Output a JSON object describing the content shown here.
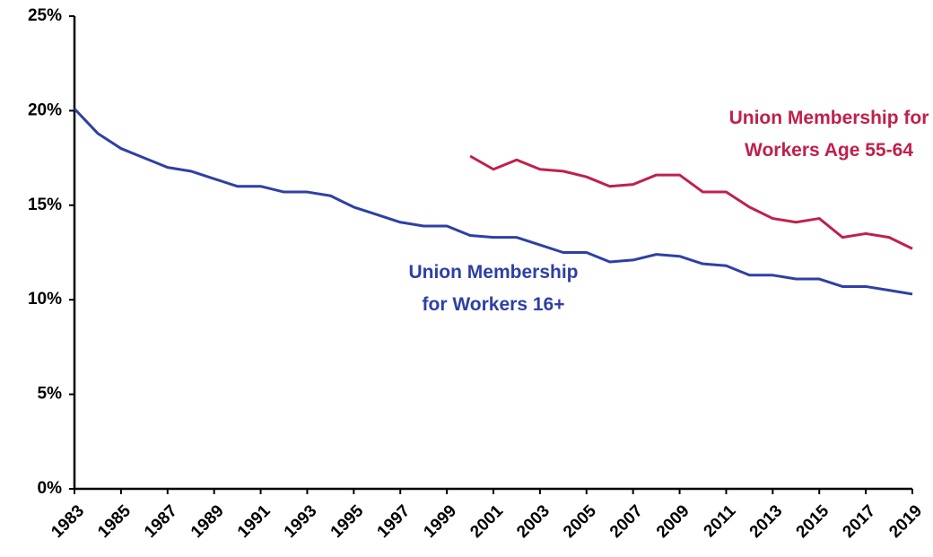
{
  "chart_data": {
    "type": "line",
    "x": [
      1983,
      1984,
      1985,
      1986,
      1987,
      1988,
      1989,
      1990,
      1991,
      1992,
      1993,
      1994,
      1995,
      1996,
      1997,
      1998,
      1999,
      2000,
      2001,
      2002,
      2003,
      2004,
      2005,
      2006,
      2007,
      2008,
      2009,
      2010,
      2011,
      2012,
      2013,
      2014,
      2015,
      2016,
      2017,
      2018,
      2019
    ],
    "series": [
      {
        "name": "Union Membership for Workers 16+",
        "color": "#2e3fa6",
        "values": [
          20.1,
          18.8,
          18.0,
          17.5,
          17.0,
          16.8,
          16.4,
          16.0,
          16.0,
          15.7,
          15.7,
          15.5,
          14.9,
          14.5,
          14.1,
          13.9,
          13.9,
          13.4,
          13.3,
          13.3,
          12.9,
          12.5,
          12.5,
          12.0,
          12.1,
          12.4,
          12.3,
          11.9,
          11.8,
          11.3,
          11.3,
          11.1,
          11.1,
          10.7,
          10.7,
          10.5,
          10.3
        ]
      },
      {
        "name": "Union Membership for Workers Age 55-64",
        "color": "#c0204a",
        "values": [
          null,
          null,
          null,
          null,
          null,
          null,
          null,
          null,
          null,
          null,
          null,
          null,
          null,
          null,
          null,
          null,
          null,
          17.6,
          16.9,
          17.4,
          16.9,
          16.8,
          16.5,
          16.0,
          16.1,
          16.6,
          16.6,
          15.7,
          15.7,
          14.9,
          14.3,
          14.1,
          14.3,
          13.3,
          13.5,
          13.3,
          12.7
        ]
      }
    ],
    "xlim": [
      1983,
      2019
    ],
    "xticks": [
      1983,
      1985,
      1987,
      1989,
      1991,
      1993,
      1995,
      1997,
      1999,
      2001,
      2003,
      2005,
      2007,
      2009,
      2011,
      2013,
      2015,
      2017,
      2019
    ],
    "ylim": [
      0,
      25
    ],
    "yticks": [
      {
        "value": 0,
        "label": "0%"
      },
      {
        "value": 5,
        "label": "5%"
      },
      {
        "value": 10,
        "label": "10%"
      },
      {
        "value": 15,
        "label": "15%"
      },
      {
        "value": 20,
        "label": "20%"
      },
      {
        "value": 25,
        "label": "25%"
      }
    ],
    "grid": false
  }
}
